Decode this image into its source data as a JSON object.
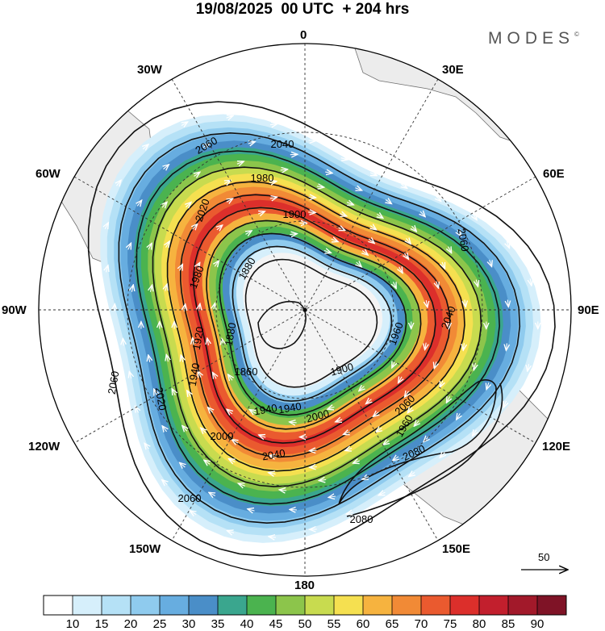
{
  "title": "19/08/2025  00 UTC  + 204 hrs",
  "brand": "MODES",
  "brand_mark": "©",
  "longitude_labels": {
    "lon_0": "0",
    "lon_30e": "30E",
    "lon_60e": "60E",
    "lon_90e": "90E",
    "lon_120e": "120E",
    "lon_150e": "150E",
    "lon_180": "180",
    "lon_150w": "150W",
    "lon_120w": "120W",
    "lon_90w": "90W",
    "lon_60w": "60W",
    "lon_30w": "30W"
  },
  "reference_vector_label": "50",
  "contour_labels": [
    "2060",
    "2040",
    "1980",
    "2020",
    "1900",
    "1880",
    "1980",
    "2060",
    "2040",
    "1880",
    "1920",
    "1960",
    "1860",
    "1940",
    "1900",
    "1940",
    "2020",
    "1960",
    "2060",
    "1940",
    "2000",
    "2000",
    "2040",
    "2060",
    "2080",
    "2080",
    "2060"
  ],
  "colorbar": {
    "ticks": [
      "10",
      "15",
      "20",
      "25",
      "30",
      "35",
      "40",
      "45",
      "50",
      "55",
      "60",
      "65",
      "70",
      "75",
      "80",
      "85",
      "90"
    ],
    "colors": [
      "#ffffff",
      "#d6effb",
      "#b5e1f6",
      "#8fcbee",
      "#67ade0",
      "#4a8ec8",
      "#3aa68e",
      "#4bb34f",
      "#8cc54b",
      "#c8db4f",
      "#f5e050",
      "#f6b33f",
      "#f18a36",
      "#ea5a2f",
      "#dc2f2b",
      "#c21f2d",
      "#a2192a",
      "#7f1326"
    ]
  },
  "colors": {
    "land": "#ececec",
    "coast": "#707070",
    "contour": "#111111",
    "wind_arrow": "#ffffff"
  },
  "icons": [
    "reference-arrow-icon"
  ]
}
